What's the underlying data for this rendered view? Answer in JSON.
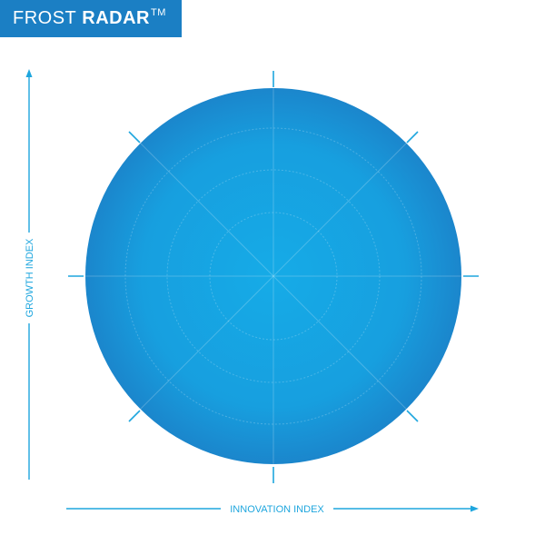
{
  "brand": {
    "word_light": "FROST",
    "word_bold": "RADAR",
    "trademark": "TM"
  },
  "axes": {
    "y_label": "GROWTH INDEX",
    "x_label": "INNOVATION INDEX"
  },
  "colors": {
    "brand_bar": "#1b7fc4",
    "axis": "#1ea6de",
    "radar_center": "#16a9e6",
    "radar_edge": "#1b86cc"
  }
}
